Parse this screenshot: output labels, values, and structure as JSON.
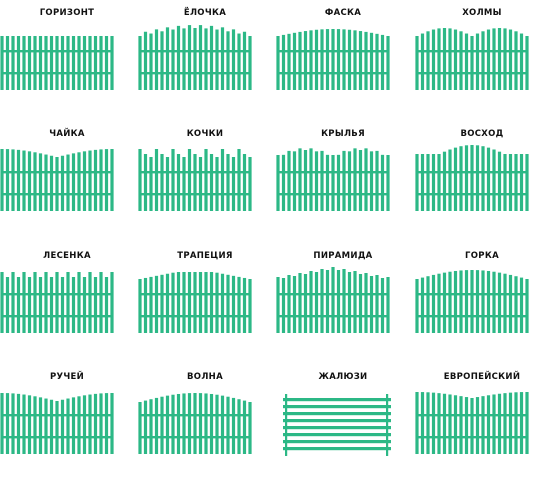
{
  "colors": {
    "fence": "#2cb886",
    "label": "#111111",
    "background": "#ffffff"
  },
  "fences": [
    {
      "label": "ГОРИЗОНТ",
      "style": "flat"
    },
    {
      "label": "ЁЛОЧКА",
      "style": "elochka"
    },
    {
      "label": "ФАСКА",
      "style": "faska"
    },
    {
      "label": "ХОЛМЫ",
      "style": "holmy"
    },
    {
      "label": "ЧАЙКА",
      "style": "chayka"
    },
    {
      "label": "КОЧКИ",
      "style": "kochki"
    },
    {
      "label": "КРЫЛЬЯ",
      "style": "krylya"
    },
    {
      "label": "ВОСХОД",
      "style": "voshod"
    },
    {
      "label": "ЛЕСЕНКА",
      "style": "lesenka"
    },
    {
      "label": "ТРАПЕЦИЯ",
      "style": "trapeciya"
    },
    {
      "label": "ПИРАМИДА",
      "style": "piramida"
    },
    {
      "label": "ГОРКА",
      "style": "gorka"
    },
    {
      "label": "РУЧЕЙ",
      "style": "ruchey"
    },
    {
      "label": "ВОЛНА",
      "style": "volna"
    },
    {
      "label": "ЖАЛЮЗИ",
      "style": "zhalyuzi"
    },
    {
      "label": "ЕВРОПЕЙСКИЙ",
      "style": "evropeyskiy"
    }
  ]
}
